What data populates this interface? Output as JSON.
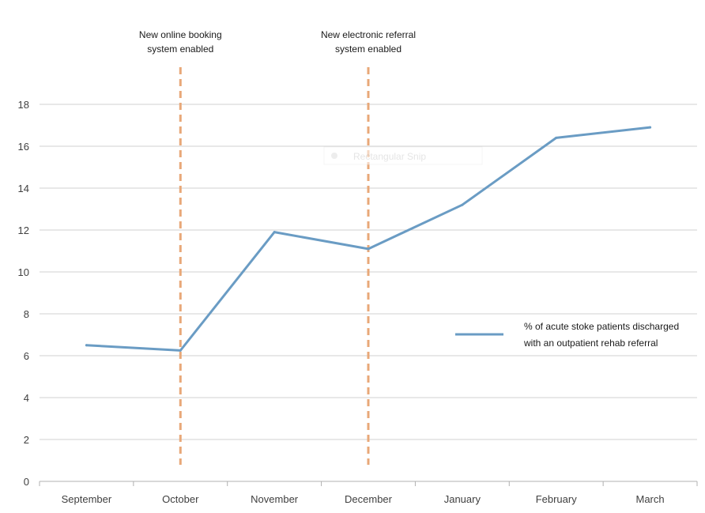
{
  "chart_data": {
    "type": "line",
    "categories": [
      "September",
      "October",
      "November",
      "December",
      "January",
      "February",
      "March"
    ],
    "series": [
      {
        "name": "% of acute stoke patients discharged with an outpatient rehab referral",
        "values": [
          6.5,
          6.25,
          11.9,
          11.1,
          13.2,
          16.4,
          16.9
        ],
        "color": "#6a9cc4"
      }
    ],
    "ylim": [
      0,
      18
    ],
    "yticks": [
      0,
      2,
      4,
      6,
      8,
      10,
      12,
      14,
      16,
      18
    ],
    "grid": true,
    "legend_position": "right",
    "legend_lines": [
      "% of acute stoke patients discharged",
      "with an outpatient rehab referral"
    ],
    "annotations": [
      {
        "category": "October",
        "lines": [
          "New online booking",
          "system enabled"
        ],
        "color": "#e8a878"
      },
      {
        "category": "December",
        "lines": [
          "New electronic referral",
          "system enabled"
        ],
        "color": "#e8a878"
      }
    ]
  },
  "overlay": {
    "snip_label": "Rectangular Snip"
  }
}
